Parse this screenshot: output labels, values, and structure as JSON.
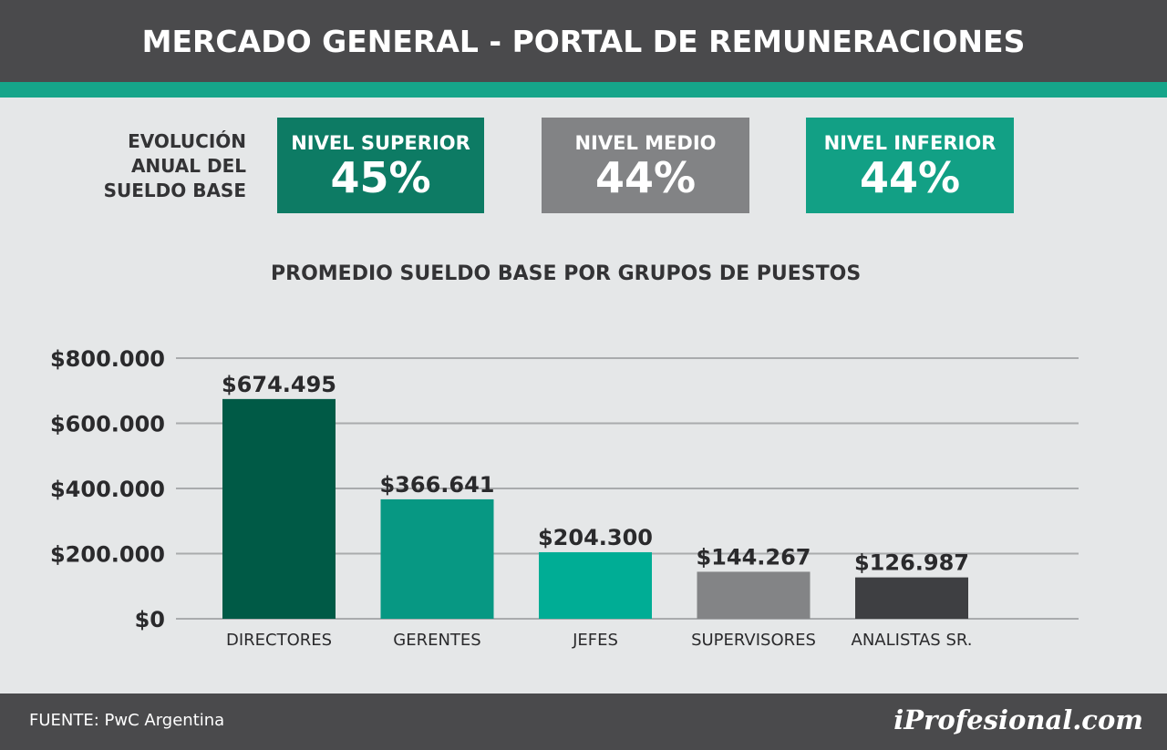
{
  "header": {
    "title": "MERCADO GENERAL - PORTAL DE REMUNERACIONES"
  },
  "colors": {
    "header_bg": "#4a4a4c",
    "teal_strip": "#16a58a",
    "background": "#e5e7e8"
  },
  "evolution": {
    "label_lines": [
      "EVOLUCIÓN",
      "ANUAL DEL",
      "SUELDO BASE"
    ],
    "levels": [
      {
        "label": "NIVEL SUPERIOR",
        "value": "45%",
        "color": "#0d7b64"
      },
      {
        "label": "NIVEL MEDIO",
        "value": "44%",
        "color": "#828385"
      },
      {
        "label": "NIVEL INFERIOR",
        "value": "44%",
        "color": "#12a085"
      }
    ]
  },
  "chart_data": {
    "type": "bar",
    "title": "PROMEDIO SUELDO BASE POR GRUPOS DE PUESTOS",
    "categories": [
      "DIRECTORES",
      "GERENTES",
      "JEFES",
      "SUPERVISORES",
      "ANALISTAS SR."
    ],
    "values": [
      674495,
      366641,
      204300,
      144267,
      126987
    ],
    "value_labels": [
      "$674.495",
      "$366.641",
      "$204.300",
      "$144.267",
      "$126.987"
    ],
    "colors": [
      "#005a46",
      "#079883",
      "#00ad95",
      "#838486",
      "#3e3f42"
    ],
    "yticks": [
      0,
      200000,
      400000,
      600000,
      800000
    ],
    "ytick_labels": [
      "$0",
      "$200.000",
      "$400.000",
      "$600.000",
      "$800.000"
    ],
    "ylim": [
      0,
      800000
    ],
    "grid": true
  },
  "footer": {
    "source": "FUENTE: PwC Argentina",
    "brand": "iProfesional.com"
  }
}
